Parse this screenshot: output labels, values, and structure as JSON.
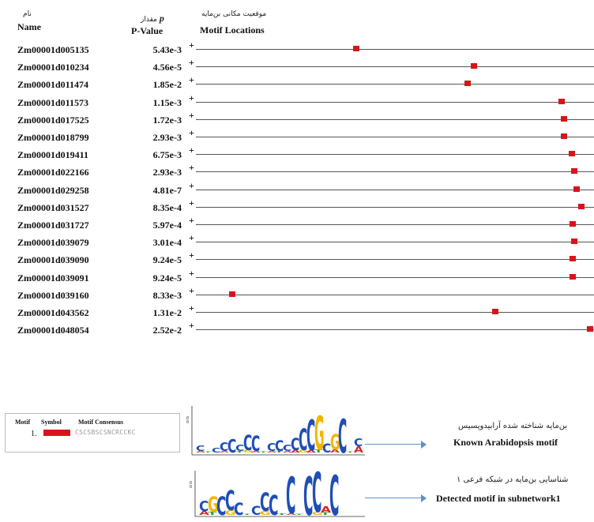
{
  "columns": {
    "name": {
      "fa": "نام",
      "en": "Name"
    },
    "pvalue": {
      "fa": "مقدار",
      "p": "p",
      "en": "P-Value"
    },
    "locations": {
      "fa": "موقعیت مکانی بن‌مایه",
      "en": "Motif Locations"
    }
  },
  "rows": [
    {
      "name": "Zm00001d005135",
      "pvalue": "5.43e-3",
      "strand": "+",
      "site": 0.406
    },
    {
      "name": "Zm00001d010234",
      "pvalue": "4.56e-5",
      "strand": "+",
      "site": 0.703
    },
    {
      "name": "Zm00001d011474",
      "pvalue": "1.85e-2",
      "strand": "+",
      "site": 0.688
    },
    {
      "name": "Zm00001d011573",
      "pvalue": "1.15e-3",
      "strand": "+",
      "site": 0.926
    },
    {
      "name": "Zm00001d017525",
      "pvalue": "1.72e-3",
      "strand": "+",
      "site": 0.932
    },
    {
      "name": "Zm00001d018799",
      "pvalue": "2.93e-3",
      "strand": "+",
      "site": 0.932
    },
    {
      "name": "Zm00001d019411",
      "pvalue": "6.75e-3",
      "strand": "+",
      "site": 0.951
    },
    {
      "name": "Zm00001d022166",
      "pvalue": "2.93e-3",
      "strand": "+",
      "site": 0.957
    },
    {
      "name": "Zm00001d029258",
      "pvalue": "4.81e-7",
      "strand": "+",
      "site": 0.963
    },
    {
      "name": "Zm00001d031527",
      "pvalue": "8.35e-4",
      "strand": "+",
      "site": 0.976
    },
    {
      "name": "Zm00001d031727",
      "pvalue": "5.97e-4",
      "strand": "+",
      "site": 0.953
    },
    {
      "name": "Zm00001d039079",
      "pvalue": "3.01e-4",
      "strand": "+",
      "site": 0.957
    },
    {
      "name": "Zm00001d039090",
      "pvalue": "9.24e-5",
      "strand": "+",
      "site": 0.953
    },
    {
      "name": "Zm00001d039091",
      "pvalue": "9.24e-5",
      "strand": "+",
      "site": 0.953
    },
    {
      "name": "Zm00001d039160",
      "pvalue": "8.33e-3",
      "strand": "+",
      "site": 0.092
    },
    {
      "name": "Zm00001d043562",
      "pvalue": "1.31e-2",
      "strand": "+",
      "site": 0.758
    },
    {
      "name": "Zm00001d048054",
      "pvalue": "2.52e-2",
      "strand": "+",
      "site": 0.998
    }
  ],
  "legend": {
    "motif_header": "Motif",
    "symbol_header": "Symbol",
    "consensus_header": "Motif Consensus",
    "number": "1.",
    "consensus": "CSCSBSCSNCRCCKC",
    "symbol_color": "#d8141b"
  },
  "logos": [
    {
      "label_fa": "بن‌مایه شناخته شده آرابیدوپسیس",
      "label_en": "Known Arabidopsis motif"
    },
    {
      "label_fa": "شناسایی بن‌مایه در شبکه فرعی ۱",
      "label_en": "Detected motif in subnetwork1"
    }
  ],
  "colors": {
    "site": "#d8141b",
    "arrow": "#5e90c9",
    "base_A": "#d62728",
    "base_C": "#1f4eb5",
    "base_G": "#f2b600",
    "base_T": "#2ca02c"
  }
}
